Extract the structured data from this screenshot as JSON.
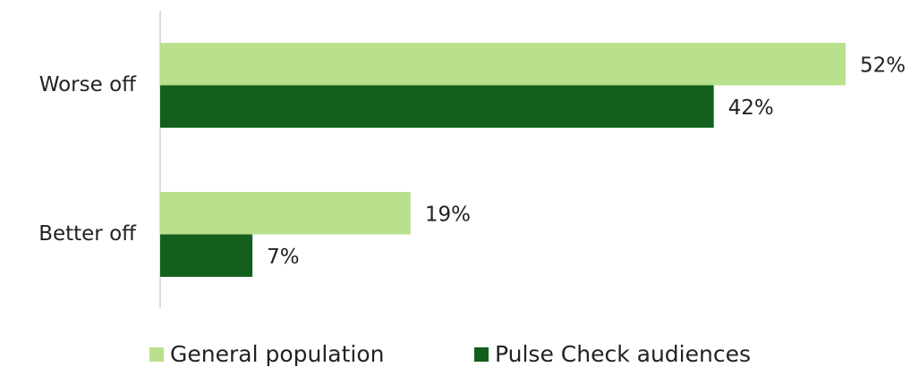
{
  "chart_data": {
    "type": "bar",
    "orientation": "horizontal",
    "categories": [
      "Worse off",
      "Better off"
    ],
    "series": [
      {
        "name": "General population",
        "color": "#b9e08c",
        "values": [
          52,
          19
        ],
        "value_labels": [
          "52%",
          "19%"
        ]
      },
      {
        "name": "Pulse Check audiences",
        "color": "#12601c",
        "values": [
          42,
          7
        ],
        "value_labels": [
          "42%",
          "7%"
        ]
      }
    ]
  }
}
